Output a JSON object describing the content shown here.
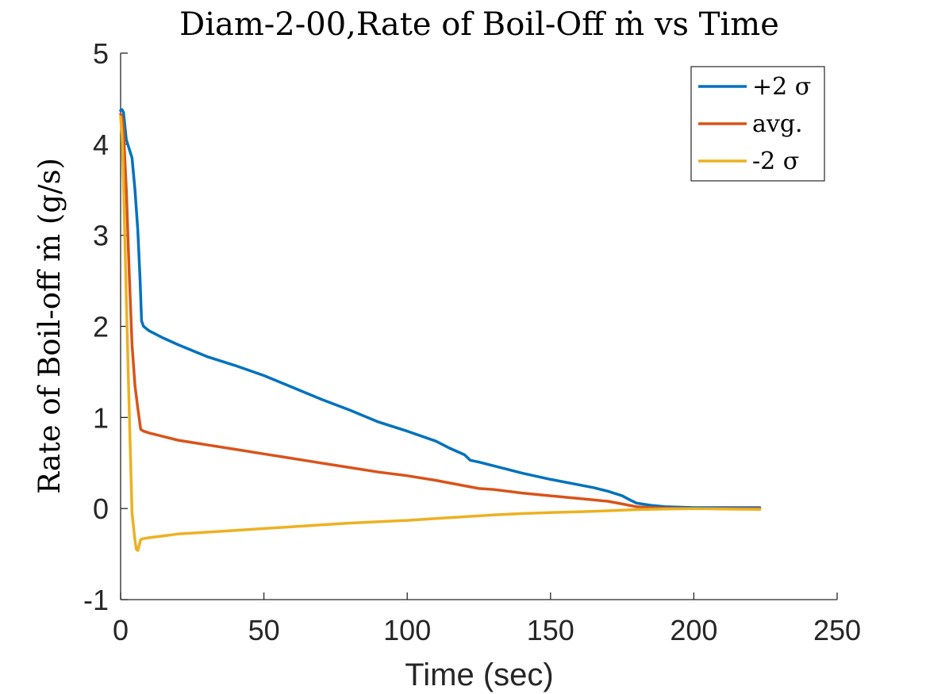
{
  "chart_data": {
    "type": "line",
    "title": "Diam-2-00,Rate of Boil-Off ṁ vs Time",
    "xlabel": "Time (sec)",
    "ylabel": "Rate of Boil-off ṁ (g/s)",
    "xlim": [
      0,
      250
    ],
    "ylim": [
      -1,
      5
    ],
    "xticks": [
      0,
      50,
      100,
      150,
      200,
      250
    ],
    "yticks": [
      -1,
      0,
      1,
      2,
      3,
      4,
      5
    ],
    "xtick_labels": [
      "0",
      "50",
      "100",
      "150",
      "200",
      "250"
    ],
    "ytick_labels": [
      "-1",
      "0",
      "1",
      "2",
      "3",
      "4",
      "5"
    ],
    "grid": false,
    "legend_position": "top-right",
    "series": [
      {
        "name": "+2 σ",
        "color": "#0072BD",
        "x": [
          0,
          0.5,
          1,
          2,
          3,
          4,
          5,
          6,
          6.8,
          7.3,
          8,
          10,
          15,
          20,
          30,
          40,
          50,
          60,
          70,
          80,
          90,
          100,
          110,
          115,
          120,
          122,
          125,
          130,
          140,
          150,
          160,
          165,
          170,
          175,
          178,
          180,
          185,
          190,
          200,
          210,
          223
        ],
        "y": [
          4.37,
          4.38,
          4.35,
          4.05,
          3.95,
          3.85,
          3.5,
          3.05,
          2.5,
          2.06,
          2.0,
          1.95,
          1.87,
          1.8,
          1.67,
          1.57,
          1.46,
          1.33,
          1.2,
          1.08,
          0.95,
          0.85,
          0.74,
          0.66,
          0.59,
          0.53,
          0.51,
          0.47,
          0.39,
          0.32,
          0.26,
          0.23,
          0.19,
          0.14,
          0.09,
          0.06,
          0.035,
          0.02,
          0.01,
          0.01,
          0.01
        ]
      },
      {
        "name": "avg.",
        "color": "#D95319",
        "x": [
          0,
          0.5,
          1,
          2,
          3,
          4,
          5,
          6,
          7,
          8,
          10,
          15,
          20,
          30,
          40,
          50,
          60,
          70,
          80,
          90,
          100,
          110,
          120,
          125,
          130,
          140,
          150,
          160,
          170,
          175,
          180,
          185,
          190,
          200,
          210,
          223
        ],
        "y": [
          4.33,
          4.3,
          4.15,
          3.5,
          2.6,
          1.8,
          1.35,
          1.1,
          0.87,
          0.85,
          0.83,
          0.79,
          0.75,
          0.7,
          0.65,
          0.6,
          0.55,
          0.5,
          0.45,
          0.4,
          0.36,
          0.31,
          0.25,
          0.22,
          0.21,
          0.17,
          0.14,
          0.11,
          0.08,
          0.05,
          0.02,
          0.01,
          0.005,
          0.0,
          0.0,
          0.0
        ]
      },
      {
        "name": "-2 σ",
        "color": "#EDB120",
        "x": [
          0,
          0.5,
          1,
          2,
          3,
          4,
          5,
          5.5,
          6,
          6.5,
          7,
          8,
          10,
          15,
          20,
          30,
          40,
          50,
          60,
          70,
          80,
          90,
          100,
          110,
          120,
          130,
          140,
          150,
          160,
          170,
          180,
          190,
          200,
          210,
          223
        ],
        "y": [
          4.3,
          4.1,
          3.6,
          2.3,
          1.1,
          -0.05,
          -0.35,
          -0.45,
          -0.46,
          -0.4,
          -0.34,
          -0.33,
          -0.32,
          -0.3,
          -0.28,
          -0.26,
          -0.24,
          -0.22,
          -0.2,
          -0.18,
          -0.16,
          -0.145,
          -0.13,
          -0.11,
          -0.09,
          -0.07,
          -0.055,
          -0.045,
          -0.035,
          -0.025,
          -0.012,
          -0.005,
          0.0,
          -0.005,
          -0.01
        ]
      }
    ]
  }
}
